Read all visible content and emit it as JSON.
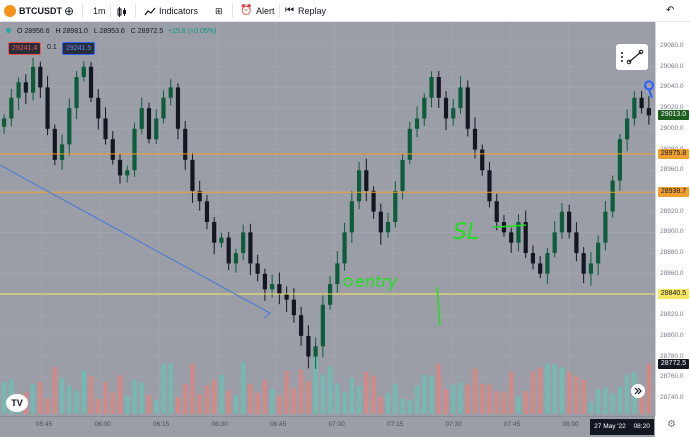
{
  "toolbar": {
    "symbol": "BTCUSDT",
    "interval": "1m",
    "indicators_label": "Indicators",
    "alert_label": "Alert",
    "replay_label": "Replay"
  },
  "legend": {
    "open": "28956.6",
    "high": "28981.0",
    "low": "28953.6",
    "close": "28972.5",
    "change": "+15.8 (+0.05%)",
    "sell_price": "29241.4",
    "spread": "0.1",
    "buy_price": "29241.5"
  },
  "price_axis": {
    "ticks": [
      "29080.0",
      "29060.0",
      "29040.0",
      "29020.0",
      "29000.0",
      "28980.0",
      "28960.0",
      "28940.0",
      "28920.0",
      "28900.0",
      "28880.0",
      "28860.0",
      "28840.0",
      "28820.0",
      "28800.0",
      "28780.0",
      "28760.0",
      "28740.0"
    ],
    "labels": {
      "current": "29013.0",
      "level_1": "28975.8",
      "level_2": "28938.7",
      "level_3": "28840.5",
      "crosshair": "28772.5"
    }
  },
  "time_axis": {
    "ticks": [
      "05:45",
      "06:00",
      "06:15",
      "06:30",
      "06:45",
      "07:00",
      "07:15",
      "07:30",
      "07:45",
      "08:00"
    ],
    "date_label": "27 May '22",
    "time_label": "08:20"
  },
  "annotations": {
    "entry_text": "entry",
    "sl_text": "SL"
  },
  "colors": {
    "up": "#26a69a",
    "down": "#ef5350",
    "chart_bg": "#9b9ea6",
    "orange_line": "#f0a030",
    "yellow_line": "#f5e663",
    "trend_line": "#4a78d8",
    "annotation": "#21e021",
    "alert_marker": "#2962ff"
  },
  "chart_data": {
    "type": "candlestick",
    "symbol": "BTCUSDT",
    "interval": "1m",
    "ylim": [
      28740,
      29080
    ],
    "x_ticks": [
      "05:45",
      "06:00",
      "06:15",
      "06:30",
      "06:45",
      "07:00",
      "07:15",
      "07:30",
      "07:45",
      "08:00"
    ],
    "close_path": [
      29010,
      29030,
      29045,
      29035,
      29060,
      29040,
      29000,
      28970,
      28985,
      29020,
      29050,
      29060,
      29030,
      29010,
      28990,
      28970,
      28955,
      28960,
      29000,
      29020,
      28990,
      29010,
      29030,
      29040,
      29000,
      28970,
      28940,
      28930,
      28910,
      28890,
      28895,
      28870,
      28880,
      28900,
      28870,
      28860,
      28845,
      28850,
      28840,
      28835,
      28820,
      28800,
      28780,
      28790,
      28830,
      28850,
      28870,
      28900,
      28930,
      28960,
      28940,
      28920,
      28900,
      28910,
      28940,
      28970,
      29000,
      29010,
      29030,
      29050,
      29030,
      29010,
      29020,
      29040,
      29000,
      28980,
      28960,
      28930,
      28910,
      28900,
      28890,
      28910,
      28880,
      28870,
      28860,
      28880,
      28900,
      28920,
      28900,
      28880,
      28860,
      28870,
      28890,
      28920,
      28950,
      28990,
      29010,
      29030,
      29020,
      29013
    ],
    "levels": [
      {
        "price": 28975.8,
        "color": "orange"
      },
      {
        "price": 28938.7,
        "color": "orange"
      },
      {
        "price": 28840.5,
        "color": "yellow"
      }
    ],
    "last_price": 29013.0
  }
}
